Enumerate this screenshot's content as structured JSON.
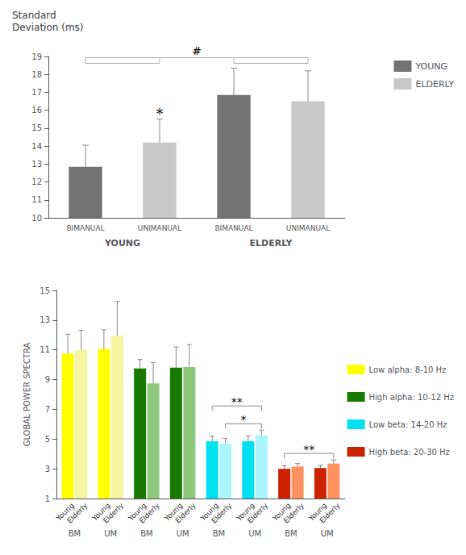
{
  "chart_data": [
    {
      "type": "bar",
      "title": "Standard\nDeviation (ms)",
      "categories": [
        "BIMANUAL",
        "UNIMANUAL",
        "BIMANUAL",
        "UNIMANUAL"
      ],
      "groups": [
        "YOUNG",
        "ELDERLY"
      ],
      "series": [
        {
          "name": "YOUNG",
          "color": "#737373",
          "values": [
            12.85,
            null,
            16.85,
            null
          ],
          "errors": [
            1.2,
            null,
            1.5,
            null
          ]
        },
        {
          "name": "ELDERLY",
          "color": "#c8c8c8",
          "values": [
            null,
            14.2,
            null,
            16.5
          ],
          "errors": [
            null,
            1.3,
            null,
            1.7
          ]
        }
      ],
      "ylim": [
        10,
        19
      ],
      "yticks": [
        10,
        11,
        12,
        13,
        14,
        15,
        16,
        17,
        18,
        19
      ],
      "grid": false,
      "legend": "upper right",
      "annotations": [
        {
          "text": "*",
          "categories": [
            1
          ]
        },
        {
          "text": "#",
          "groups": [
            [
              0,
              1
            ],
            [
              2,
              3
            ]
          ]
        }
      ]
    },
    {
      "type": "bar",
      "ylabel": "GLOBAL POWER SPECTRA",
      "categories": [
        "BM",
        "UM",
        "BM",
        "UM",
        "BM",
        "UM",
        "BM",
        "UM"
      ],
      "series": [
        {
          "name": "Young",
          "colors": [
            "#ffff00",
            "#ffff00",
            "#1a7a00",
            "#1a7a00",
            "#00e0f0",
            "#00e0f0",
            "#cc2200",
            "#cc2200"
          ],
          "values": [
            10.75,
            11.05,
            9.75,
            9.8,
            4.85,
            4.85,
            3.0,
            3.05
          ],
          "errors": [
            1.3,
            1.3,
            0.6,
            1.4,
            0.35,
            0.35,
            0.2,
            0.2
          ]
        },
        {
          "name": "Elderly",
          "colors": [
            "#f5f5a0",
            "#f5f5a0",
            "#8dc87d",
            "#8dc87d",
            "#aaf5ff",
            "#aaf5ff",
            "#ff9060",
            "#ff9060"
          ],
          "values": [
            11.0,
            11.95,
            8.75,
            9.85,
            4.7,
            5.25,
            3.15,
            3.35
          ],
          "errors": [
            1.3,
            2.3,
            1.4,
            1.5,
            0.35,
            0.35,
            0.2,
            0.25
          ]
        }
      ],
      "ylim": [
        1,
        15
      ],
      "yticks": [
        1,
        3,
        5,
        7,
        9,
        11,
        13,
        15
      ],
      "grid": false,
      "legend": "right",
      "legend_entries": [
        {
          "name": "Low alpha: 8-10 Hz",
          "color": "#ffff00"
        },
        {
          "name": "High alpha: 10-12 Hz",
          "color": "#1a7a00"
        },
        {
          "name": "Low beta: 14-20 Hz",
          "color": "#00e0f0"
        },
        {
          "name": "High beta: 20-30 Hz",
          "color": "#cc2200"
        }
      ],
      "annotations": [
        {
          "text": "**",
          "from": [
            4,
            0
          ],
          "to": [
            5,
            1
          ]
        },
        {
          "text": "*",
          "from": [
            4,
            1
          ],
          "to": [
            5,
            1
          ]
        },
        {
          "text": "**",
          "from": [
            6,
            0
          ],
          "to": [
            7,
            1
          ]
        }
      ]
    }
  ]
}
